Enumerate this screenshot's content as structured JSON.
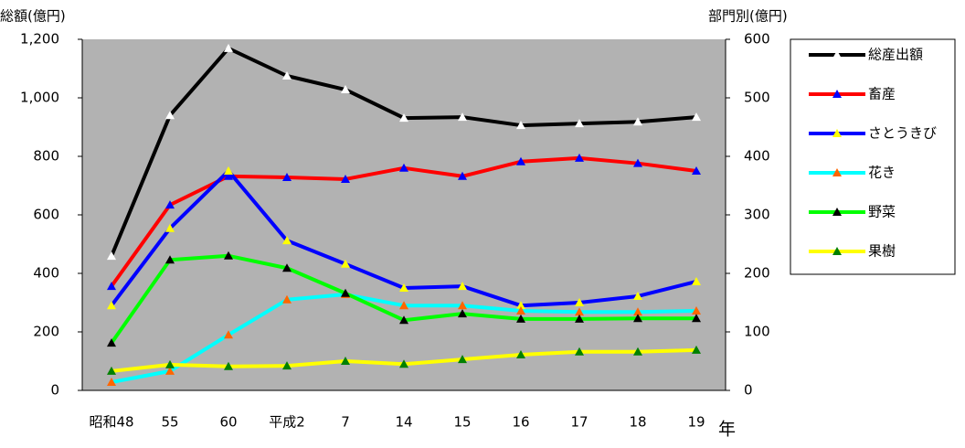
{
  "chart_data": {
    "type": "line",
    "y_label": "総額(億円)",
    "y2_label": "部門別(億円)",
    "x_label": "年",
    "categories": [
      "昭和48",
      "55",
      "60",
      "平成2",
      "7",
      "14",
      "15",
      "16",
      "17",
      "18",
      "19"
    ],
    "ylim": [
      0,
      1200
    ],
    "yticks": [
      0,
      200,
      400,
      600,
      800,
      {
        "value": 1000,
        "label": "1,000"
      },
      {
        "value": 1200,
        "label": "1,200"
      }
    ],
    "y2lim": [
      0,
      600
    ],
    "y2ticks": [
      0,
      100,
      200,
      300,
      400,
      500,
      600
    ],
    "background": "#b2b2b2",
    "legend": "right",
    "series": [
      {
        "name": "総産出額",
        "color": "#000000",
        "marker_color": "#ffffff",
        "values": [
          459,
          940,
          1169,
          1075,
          1028,
          931,
          934,
          906,
          912,
          918,
          934
        ]
      },
      {
        "name": "畜産",
        "color": "#ff0000",
        "marker_color": "#0000ff",
        "axis": "y2",
        "values": [
          178,
          317,
          366,
          364,
          361,
          380,
          366,
          391,
          397,
          388,
          375
        ]
      },
      {
        "name": "さとうきび",
        "color": "#0000ff",
        "marker_color": "#ffff00",
        "axis": "y2",
        "values": [
          145,
          277,
          375,
          256,
          216,
          175,
          178,
          145,
          150,
          161,
          186
        ]
      },
      {
        "name": "花き",
        "color": "#00ffff",
        "marker_color": "#ff6600",
        "axis": "y2",
        "values": [
          14,
          33,
          95,
          155,
          164,
          145,
          145,
          136,
          134,
          134,
          136
        ]
      },
      {
        "name": "野菜",
        "color": "#00ff00",
        "marker_color": "#000000",
        "axis": "y2",
        "values": [
          81,
          223,
          230,
          209,
          166,
          120,
          131,
          122,
          122,
          123,
          123
        ]
      },
      {
        "name": "果樹",
        "color": "#ffff00",
        "marker_color": "#008000",
        "axis": "y2",
        "values": [
          33,
          44,
          41,
          42,
          50,
          45,
          53,
          61,
          66,
          66,
          69
        ]
      }
    ]
  }
}
